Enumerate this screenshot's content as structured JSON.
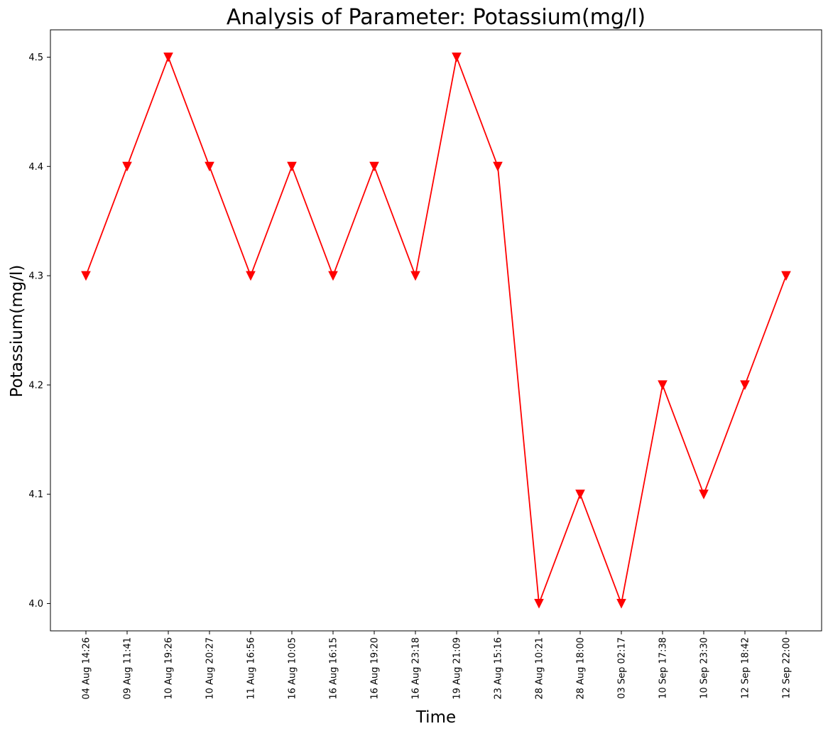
{
  "chart_data": {
    "type": "line",
    "title": "Analysis of Parameter: Potassium(mg/l)",
    "xlabel": "Time",
    "ylabel": "Potassium(mg/l)",
    "categories": [
      "04 Aug 14:26",
      "09 Aug 11:41",
      "10 Aug 19:26",
      "10 Aug 20:27",
      "11 Aug 16:56",
      "16 Aug 10:05",
      "16 Aug 16:15",
      "16 Aug 19:20",
      "16 Aug 23:18",
      "19 Aug 21:09",
      "23 Aug 15:16",
      "28 Aug 10:21",
      "28 Aug 18:00",
      "03 Sep 02:17",
      "10 Sep 17:38",
      "10 Sep 23:30",
      "12 Sep 18:42",
      "12 Sep 22:00"
    ],
    "series": [
      {
        "values": [
          4.3,
          4.4,
          4.5,
          4.4,
          4.3,
          4.4,
          4.3,
          4.4,
          4.3,
          4.5,
          4.4,
          4.0,
          4.1,
          4.0,
          4.2,
          4.1,
          4.2,
          4.3
        ],
        "color": "#ff0000",
        "marker": "triangle-down"
      }
    ],
    "yticks": [
      "4.0",
      "4.1",
      "4.2",
      "4.3",
      "4.4",
      "4.5"
    ],
    "ylim": [
      3.975,
      4.525
    ],
    "grid": false,
    "legend": "none"
  }
}
